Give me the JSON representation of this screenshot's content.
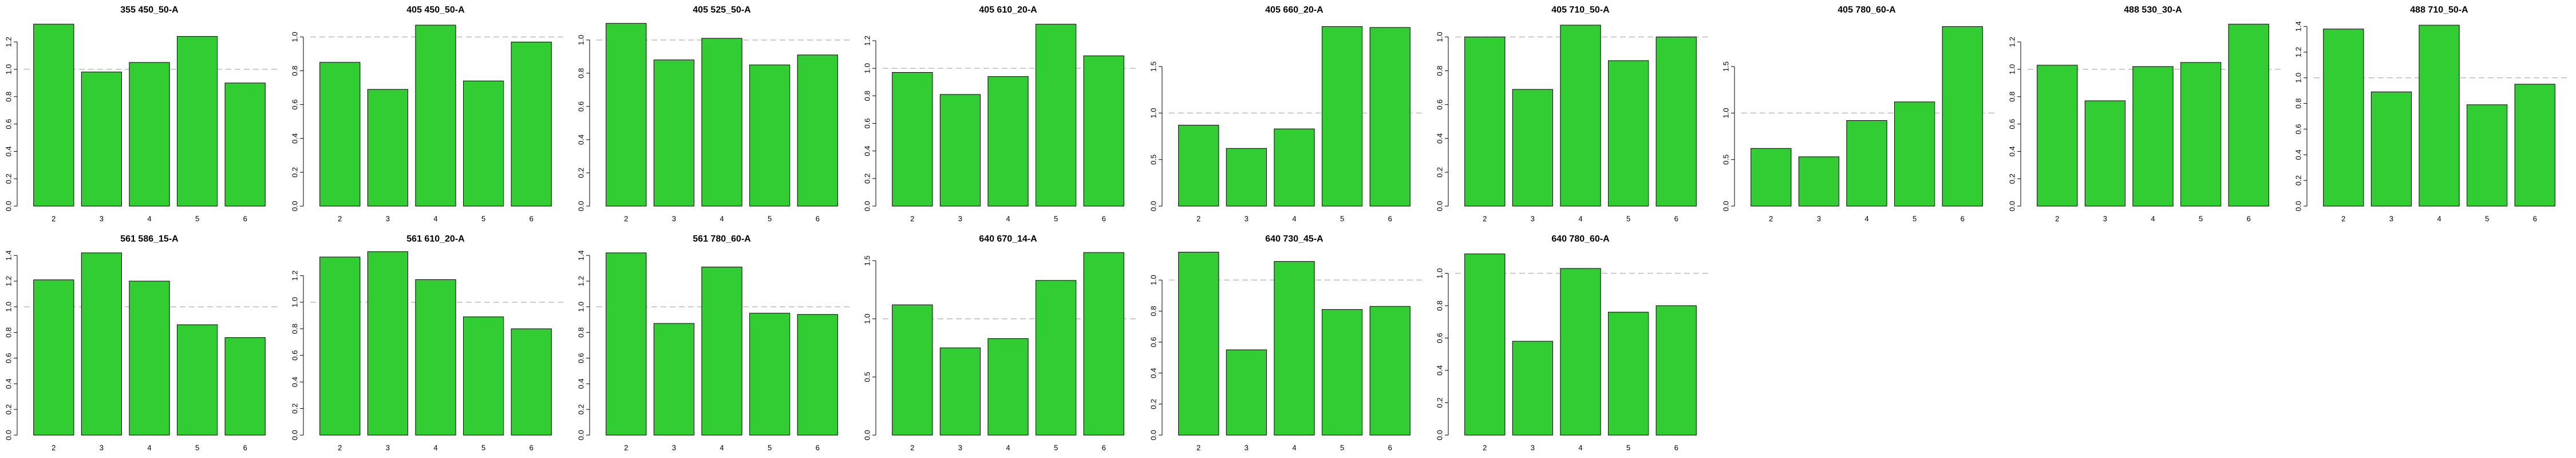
{
  "chart_data": [
    {
      "type": "bar",
      "title": "355 450_50-A",
      "categories": [
        "2",
        "3",
        "4",
        "5",
        "6"
      ],
      "values": [
        1.33,
        0.98,
        1.05,
        1.24,
        0.9
      ],
      "color": "#32cd32",
      "ylim": [
        0,
        1.36
      ],
      "yticks": [
        {
          "value": 0,
          "label": "0.0"
        },
        0.2,
        0.4,
        0.6,
        0.8,
        {
          "value": 1,
          "label": "1.0"
        },
        1.2
      ],
      "refline": 1
    },
    {
      "type": "bar",
      "title": "405 450_50-A",
      "categories": [
        "2",
        "3",
        "4",
        "5",
        "6"
      ],
      "values": [
        0.85,
        0.69,
        1.07,
        0.74,
        0.97
      ],
      "color": "#32cd32",
      "ylim": [
        0,
        1.1
      ],
      "yticks": [
        {
          "value": 0,
          "label": "0.0"
        },
        0.2,
        0.4,
        0.6,
        0.8,
        {
          "value": 1,
          "label": "1.0"
        }
      ],
      "refline": 1
    },
    {
      "type": "bar",
      "title": "405 525_50-A",
      "categories": [
        "2",
        "3",
        "4",
        "5",
        "6"
      ],
      "values": [
        1.1,
        0.88,
        1.01,
        0.85,
        0.91
      ],
      "color": "#32cd32",
      "ylim": [
        0,
        1.12
      ],
      "yticks": [
        {
          "value": 0,
          "label": "0.0"
        },
        0.2,
        0.4,
        0.6,
        0.8,
        {
          "value": 1,
          "label": "1.0"
        }
      ],
      "refline": 1
    },
    {
      "type": "bar",
      "title": "405 610_20-A",
      "categories": [
        "2",
        "3",
        "4",
        "5",
        "6"
      ],
      "values": [
        0.97,
        0.81,
        0.94,
        1.32,
        1.09
      ],
      "color": "#32cd32",
      "ylim": [
        0,
        1.35
      ],
      "yticks": [
        {
          "value": 0,
          "label": "0.0"
        },
        0.2,
        0.4,
        0.6,
        0.8,
        {
          "value": 1,
          "label": "1.0"
        },
        1.2
      ],
      "refline": 1
    },
    {
      "type": "bar",
      "title": "405 660_20-A",
      "categories": [
        "2",
        "3",
        "4",
        "5",
        "6"
      ],
      "values": [
        0.87,
        0.62,
        0.83,
        1.93,
        1.92
      ],
      "color": "#32cd32",
      "ylim": [
        0,
        2.0
      ],
      "yticks": [
        {
          "value": 0,
          "label": "0.0"
        },
        0.5,
        {
          "value": 1,
          "label": "1.0"
        },
        1.5
      ],
      "refline": 1
    },
    {
      "type": "bar",
      "title": "405 710_50-A",
      "categories": [
        "2",
        "3",
        "4",
        "5",
        "6"
      ],
      "values": [
        1.0,
        0.69,
        1.07,
        0.86,
        1.0
      ],
      "color": "#32cd32",
      "ylim": [
        0,
        1.1
      ],
      "yticks": [
        {
          "value": 0,
          "label": "0.0"
        },
        0.2,
        0.4,
        0.6,
        0.8,
        {
          "value": 1,
          "label": "1.0"
        }
      ],
      "refline": 1
    },
    {
      "type": "bar",
      "title": "405 780_60-A",
      "categories": [
        "2",
        "3",
        "4",
        "5",
        "6"
      ],
      "values": [
        0.62,
        0.53,
        0.92,
        1.12,
        1.93
      ],
      "color": "#32cd32",
      "ylim": [
        0,
        2.0
      ],
      "yticks": [
        {
          "value": 0,
          "label": "0.0"
        },
        0.5,
        {
          "value": 1,
          "label": "1.0"
        },
        1.5
      ],
      "refline": 1
    },
    {
      "type": "bar",
      "title": "488 530_30-A",
      "categories": [
        "2",
        "3",
        "4",
        "5",
        "6"
      ],
      "values": [
        1.03,
        0.77,
        1.02,
        1.05,
        1.33
      ],
      "color": "#32cd32",
      "ylim": [
        0,
        1.36
      ],
      "yticks": [
        {
          "value": 0,
          "label": "0.0"
        },
        0.2,
        0.4,
        0.6,
        0.8,
        {
          "value": 1,
          "label": "1.0"
        },
        1.2
      ],
      "refline": 1
    },
    {
      "type": "bar",
      "title": "488 710_50-A",
      "categories": [
        "2",
        "3",
        "4",
        "5",
        "6"
      ],
      "values": [
        1.38,
        0.89,
        1.41,
        0.79,
        0.95
      ],
      "color": "#32cd32",
      "ylim": [
        0,
        1.45
      ],
      "yticks": [
        {
          "value": 0,
          "label": "0.0"
        },
        0.2,
        0.4,
        0.6,
        0.8,
        {
          "value": 1,
          "label": "1.0"
        },
        1.2,
        1.4
      ],
      "refline": 1
    },
    {
      "type": "bar",
      "title": "561 586_15-A",
      "categories": [
        "2",
        "3",
        "4",
        "5",
        "6"
      ],
      "values": [
        1.21,
        1.42,
        1.2,
        0.86,
        0.76
      ],
      "color": "#32cd32",
      "ylim": [
        0,
        1.45
      ],
      "yticks": [
        {
          "value": 0,
          "label": "0.0"
        },
        0.2,
        0.4,
        0.6,
        0.8,
        {
          "value": 1,
          "label": "1.0"
        },
        1.2,
        1.4
      ],
      "refline": 1
    },
    {
      "type": "bar",
      "title": "561 610_20-A",
      "categories": [
        "2",
        "3",
        "4",
        "5",
        "6"
      ],
      "values": [
        1.34,
        1.38,
        1.17,
        0.89,
        0.8
      ],
      "color": "#32cd32",
      "ylim": [
        0,
        1.4
      ],
      "yticks": [
        {
          "value": 0,
          "label": "0.0"
        },
        0.2,
        0.4,
        0.6,
        0.8,
        {
          "value": 1,
          "label": "1.0"
        },
        1.2
      ],
      "refline": 1
    },
    {
      "type": "bar",
      "title": "561 780_60-A",
      "categories": [
        "2",
        "3",
        "4",
        "5",
        "6"
      ],
      "values": [
        1.42,
        0.87,
        1.31,
        0.95,
        0.94
      ],
      "color": "#32cd32",
      "ylim": [
        0,
        1.45
      ],
      "yticks": [
        {
          "value": 0,
          "label": "0.0"
        },
        0.2,
        0.4,
        0.6,
        0.8,
        {
          "value": 1,
          "label": "1.0"
        },
        1.2,
        1.4
      ],
      "refline": 1
    },
    {
      "type": "bar",
      "title": "640 670_14-A",
      "categories": [
        "2",
        "3",
        "4",
        "5",
        "6"
      ],
      "values": [
        1.12,
        0.75,
        0.83,
        1.33,
        1.57
      ],
      "color": "#32cd32",
      "ylim": [
        0,
        1.6
      ],
      "yticks": [
        {
          "value": 0,
          "label": "0.0"
        },
        0.5,
        {
          "value": 1,
          "label": "1.0"
        },
        1.5
      ],
      "refline": 1
    },
    {
      "type": "bar",
      "title": "640 730_45-A",
      "categories": [
        "2",
        "3",
        "4",
        "5",
        "6"
      ],
      "values": [
        1.18,
        0.55,
        1.12,
        0.81,
        0.83
      ],
      "color": "#32cd32",
      "ylim": [
        0,
        1.2
      ],
      "yticks": [
        {
          "value": 0,
          "label": "0.0"
        },
        0.2,
        0.4,
        0.6,
        0.8,
        {
          "value": 1,
          "label": "1.0"
        }
      ],
      "refline": 1
    },
    {
      "type": "bar",
      "title": "640 780_60-A",
      "categories": [
        "2",
        "3",
        "4",
        "5",
        "6"
      ],
      "values": [
        1.12,
        0.58,
        1.03,
        0.76,
        0.8
      ],
      "color": "#32cd32",
      "ylim": [
        0,
        1.15
      ],
      "yticks": [
        {
          "value": 0,
          "label": "0.0"
        },
        0.2,
        0.4,
        0.6,
        0.8,
        {
          "value": 1,
          "label": "1.0"
        }
      ],
      "refline": 1
    }
  ]
}
